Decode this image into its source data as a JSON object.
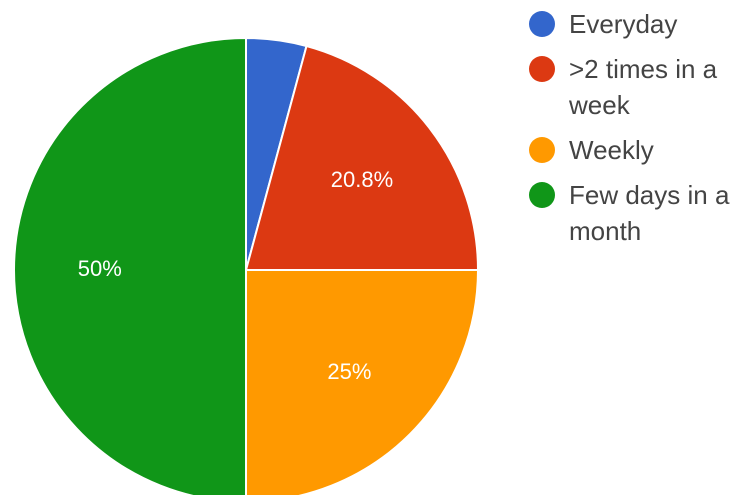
{
  "chart_data": {
    "type": "pie",
    "slices": [
      {
        "label": "Everyday",
        "value": 4.2,
        "color": "#3366cc",
        "display": ""
      },
      {
        "label": ">2 times in a week",
        "value": 20.8,
        "color": "#dc3912",
        "display": "20.8%"
      },
      {
        "label": "Weekly",
        "value": 25,
        "color": "#ff9900",
        "display": "25%"
      },
      {
        "label": "Few days in a month",
        "value": 50,
        "color": "#109618",
        "display": "50%"
      }
    ],
    "start_angle_deg": 90,
    "direction": "clockwise",
    "legend_position": "right",
    "legend": [
      {
        "label": "Everyday",
        "color": "#3366cc"
      },
      {
        "label": ">2 times in a week",
        "color": "#dc3912"
      },
      {
        "label": "Weekly",
        "color": "#ff9900"
      },
      {
        "label": "Few days in a month",
        "color": "#109618"
      }
    ]
  }
}
